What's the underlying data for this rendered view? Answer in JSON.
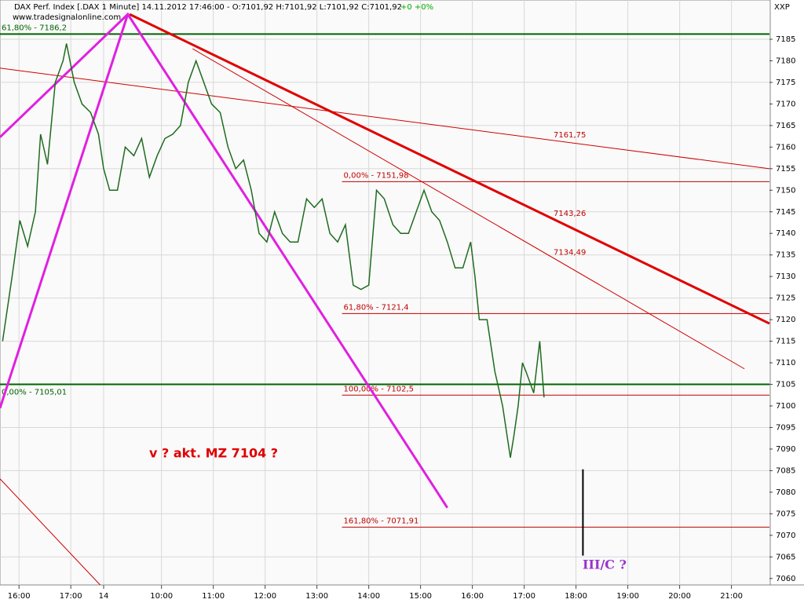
{
  "chart_data": {
    "type": "line",
    "title": "DAX Perf. Index [.DAX 1 Minute] 14.11.2012 17:46:00 - O:7101,92 H:7101,92 L:7101,92 C:7101,92",
    "change": "+0 +0%",
    "source": "www.tradesignalonline.com",
    "axis_name": "XXP",
    "series": [
      {
        "name": "DAX",
        "color": "#1f6b1f",
        "x": [
          3,
          14,
          23,
          32,
          41,
          47,
          55,
          64,
          73,
          77,
          86,
          95,
          105,
          114,
          120,
          127,
          136,
          145,
          155,
          164,
          173,
          182,
          191,
          200,
          209,
          218,
          227,
          236,
          245,
          255,
          264,
          273,
          282,
          291,
          300,
          309,
          318,
          327,
          336,
          345,
          355,
          364,
          373,
          382,
          391,
          400,
          409,
          418,
          427,
          436,
          445,
          455,
          464,
          473,
          482,
          491,
          500,
          509,
          518,
          527,
          536,
          545,
          550,
          555,
          564,
          573,
          582,
          591,
          595,
          600,
          605,
          609,
          618,
          625,
          630
        ],
        "values": [
          7115,
          7130,
          7143,
          7137,
          7145,
          7163,
          7156,
          7175,
          7180,
          7184,
          7175,
          7170,
          7168,
          7163,
          7155,
          7150,
          7150,
          7160,
          7158,
          7162,
          7153,
          7158,
          7162,
          7163,
          7165,
          7175,
          7180,
          7175,
          7170,
          7168,
          7160,
          7155,
          7157,
          7150,
          7140,
          7138,
          7145,
          7140,
          7138,
          7138,
          7148,
          7146,
          7148,
          7140,
          7138,
          7142,
          7128,
          7127,
          7128,
          7150,
          7148,
          7142,
          7140,
          7140,
          7145,
          7150,
          7145,
          7143,
          7138,
          7132,
          7132,
          7138,
          7130,
          7120,
          7120,
          7108,
          7100,
          7088,
          7093,
          7100,
          7110,
          7108,
          7103,
          7115,
          7102
        ]
      }
    ],
    "levels": [
      {
        "label": "61,80% - 7186,2",
        "value": 7186.2,
        "color": "#006400",
        "x0": 0
      },
      {
        "label": "0,00% - 7105,01",
        "value": 7105.01,
        "color": "#006400",
        "x0": 0
      },
      {
        "label": "0,00% - 7151,98",
        "value": 7151.98,
        "color": "#c00000",
        "x0": 396
      },
      {
        "label": "61,80% - 7121,4",
        "value": 7121.4,
        "color": "#c00000",
        "x0": 396
      },
      {
        "label": "100,00% - 7102,5",
        "value": 7102.5,
        "color": "#c00000",
        "x0": 396
      },
      {
        "label": "161,80% - 7071,91",
        "value": 7071.91,
        "color": "#c00000",
        "x0": 396
      }
    ],
    "trendlines": [
      {
        "label": "7143,26",
        "color": "#e00000",
        "width": 3,
        "x": [
          150,
          891
        ],
        "y": [
          7190.8,
          7119.1
        ]
      },
      {
        "label": "7161,75",
        "color": "#d00000",
        "width": 1,
        "x": [
          0,
          891
        ],
        "y": [
          7178.3,
          7155.0
        ]
      },
      {
        "label": "7134,49",
        "color": "#d00000",
        "width": 1,
        "x": [
          223,
          862
        ],
        "y": [
          7182.8,
          7108.6
        ]
      },
      {
        "color": "#e020e0",
        "width": 3,
        "x": [
          0,
          148,
          518
        ],
        "y": [
          7162.3,
          7190.8,
          7076.4
        ]
      },
      {
        "color": "#e020e0",
        "width": 3,
        "x": [
          0,
          148
        ],
        "y": [
          7099.5,
          7190.8
        ]
      },
      {
        "color": "#d00000",
        "width": 1,
        "x": [
          0,
          116
        ],
        "y": [
          7083.1,
          7058.5
        ]
      },
      {
        "color": "#000000",
        "width": 2,
        "x": [
          675,
          675
        ],
        "y": [
          7085.3,
          7065.3
        ]
      }
    ],
    "annotations": [
      "v ? akt. MZ 7104 ?",
      "III/C ?"
    ],
    "xlim": [
      0,
      891
    ],
    "xticks": [
      {
        "value": 22,
        "label": "16:00"
      },
      {
        "value": 82,
        "label": "17:00"
      },
      {
        "value": 120,
        "label": "14"
      },
      {
        "value": 187,
        "label": "10:00"
      },
      {
        "value": 247,
        "label": "11:00"
      },
      {
        "value": 307,
        "label": "12:00"
      },
      {
        "value": 367,
        "label": "13:00"
      },
      {
        "value": 427,
        "label": "14:00"
      },
      {
        "value": 487,
        "label": "15:00"
      },
      {
        "value": 547,
        "label": "16:00"
      },
      {
        "value": 607,
        "label": "17:00"
      },
      {
        "value": 667,
        "label": "18:00"
      },
      {
        "value": 727,
        "label": "19:00"
      },
      {
        "value": 787,
        "label": "20:00"
      },
      {
        "value": 847,
        "label": "21:00"
      }
    ],
    "ylim": [
      7058.5,
      7194.1
    ],
    "yticks": [
      7060,
      7065,
      7070,
      7075,
      7080,
      7085,
      7090,
      7095,
      7100,
      7105,
      7110,
      7115,
      7120,
      7125,
      7130,
      7135,
      7140,
      7145,
      7150,
      7155,
      7160,
      7165,
      7170,
      7175,
      7180,
      7185
    ],
    "grid": true
  }
}
